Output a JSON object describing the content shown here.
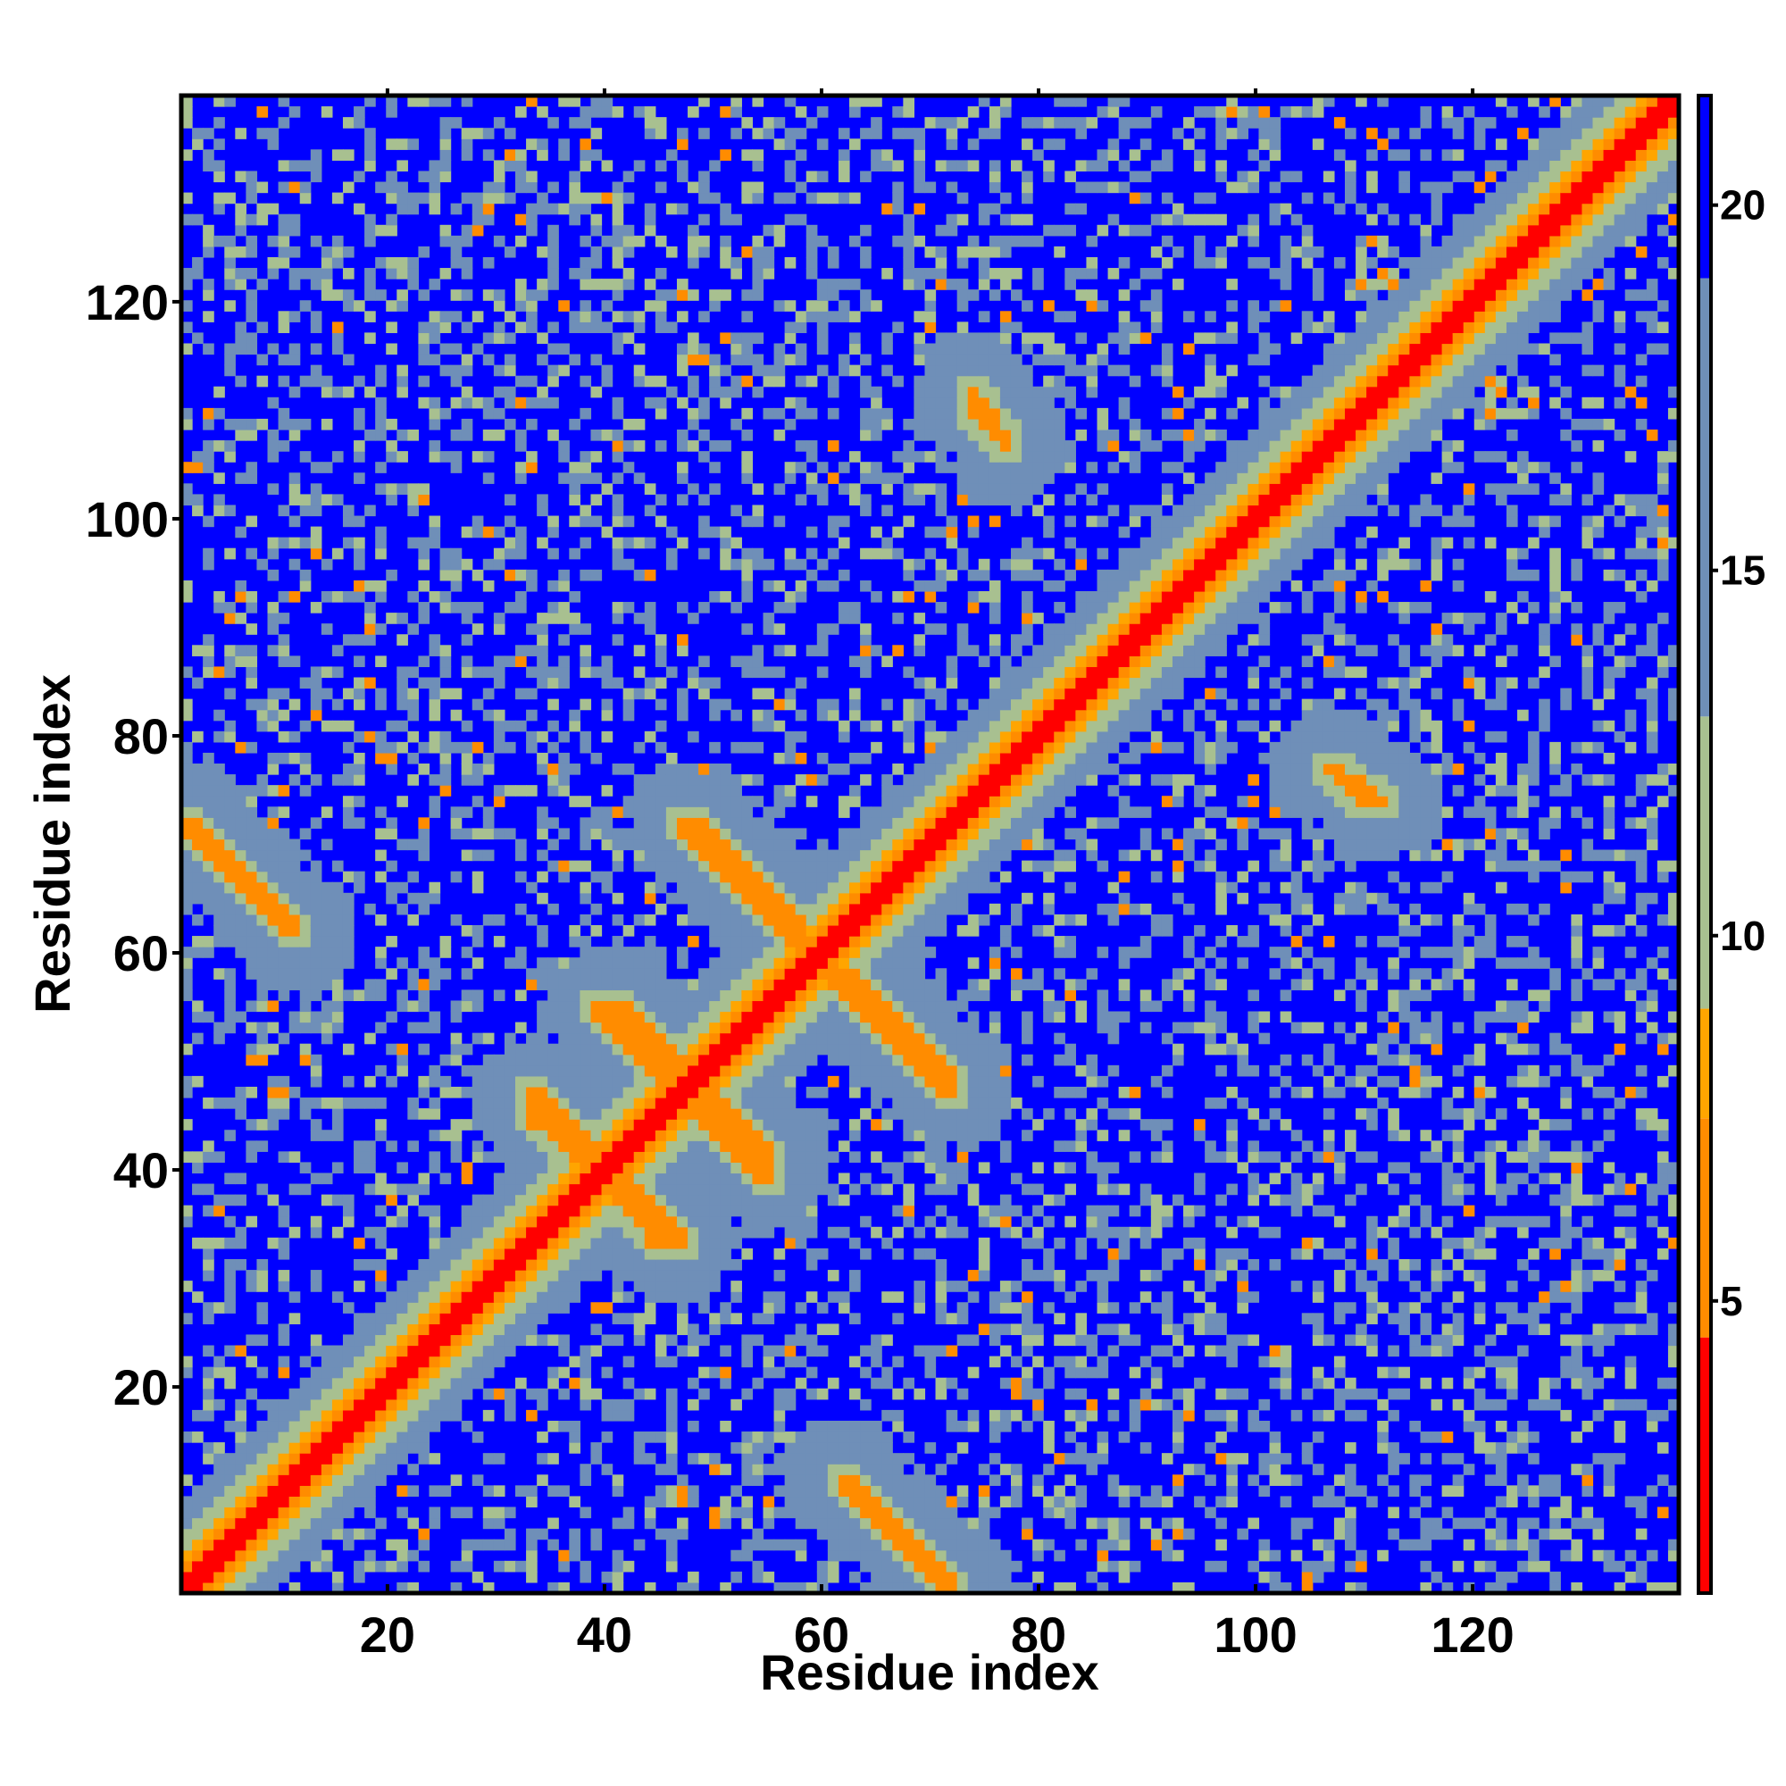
{
  "chart_data": {
    "type": "heatmap",
    "title": "",
    "xlabel": "Residue index",
    "ylabel": "Residue index",
    "n_residues": 139,
    "xlim": [
      1,
      139
    ],
    "ylim": [
      1,
      139
    ],
    "x_ticks": [
      20,
      40,
      60,
      80,
      100,
      120
    ],
    "y_ticks": [
      20,
      40,
      60,
      80,
      100,
      120
    ],
    "colorbar": {
      "range": [
        1,
        21.5
      ],
      "ticks": [
        5,
        10,
        15,
        20
      ],
      "colors": {
        "red": "#ff0000",
        "orange": "#ff8c00",
        "light_orange": "#ffa500",
        "sage": "#a8c090",
        "steel": "#6f8fb8",
        "blue": "#0000ff"
      }
    },
    "contact_segments": [
      {
        "start": [
          1,
          72
        ],
        "end": [
          11,
          62
        ],
        "kind": "antiparallel"
      },
      {
        "start": [
          39,
          55
        ],
        "end": [
          47,
          47
        ],
        "kind": "antiparallel"
      },
      {
        "start": [
          33,
          45
        ],
        "end": [
          41,
          38
        ],
        "kind": "antiparallel"
      },
      {
        "start": [
          47,
          72
        ],
        "end": [
          58,
          61
        ],
        "kind": "antiparallel"
      },
      {
        "start": [
          40,
          40
        ],
        "end": [
          47,
          33
        ],
        "kind": "antiparallel"
      },
      {
        "start": [
          48,
          48
        ],
        "end": [
          55,
          41
        ],
        "kind": "antiparallel"
      },
      {
        "start": [
          62,
          58
        ],
        "end": [
          72,
          48
        ],
        "kind": "antiparallel"
      },
      {
        "start": [
          62,
          11
        ],
        "end": [
          72,
          1
        ],
        "kind": "antiparallel"
      },
      {
        "start": [
          107,
          77
        ],
        "end": [
          111,
          74
        ],
        "kind": "spot"
      },
      {
        "start": [
          74,
          112
        ],
        "end": [
          77,
          107
        ],
        "kind": "spot"
      }
    ]
  }
}
